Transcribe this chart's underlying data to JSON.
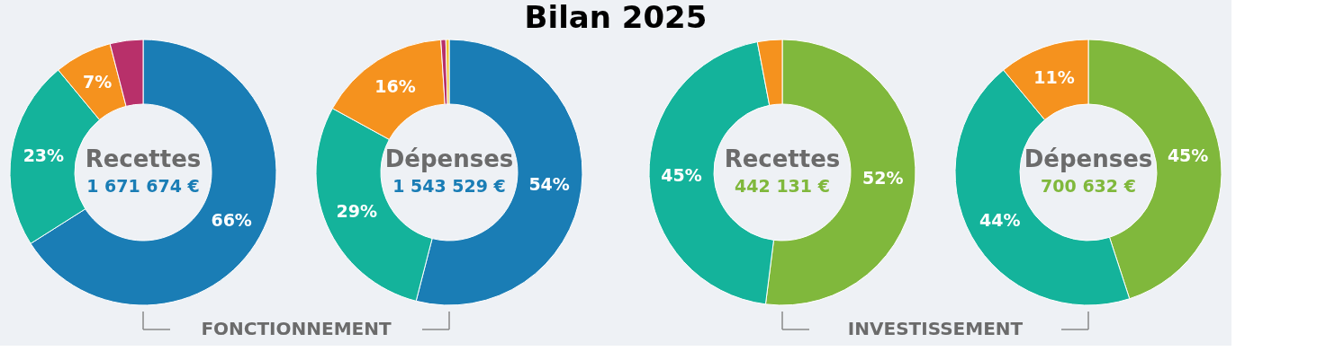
{
  "chart_data": [
    {
      "type": "donut",
      "title": "Bilan 2025",
      "categories": [
        null,
        null,
        null,
        null
      ],
      "values": [
        66,
        23,
        7,
        4
      ],
      "colors": [
        "#1a7db5",
        "#14b39b",
        "#f5921e",
        "#b8306a"
      ],
      "value_labels": [
        "66%",
        "23%",
        "7%",
        null
      ],
      "annotations": [
        "Recettes",
        "1 671 674 €",
        "FONCTIONNEMENT"
      ]
    },
    {
      "type": "donut",
      "categories": [
        null,
        null,
        null,
        null,
        null
      ],
      "values": [
        54,
        29,
        16,
        0.6,
        0.4
      ],
      "colors": [
        "#1a7db5",
        "#14b39b",
        "#f5921e",
        "#b8306a",
        "#f2c230"
      ],
      "value_labels": [
        "54%",
        "29%",
        "16%",
        null,
        null
      ],
      "annotations": [
        "Dépenses",
        "1 543 529 €"
      ]
    },
    {
      "type": "donut",
      "categories": [
        null,
        null,
        null
      ],
      "values": [
        52,
        45,
        3
      ],
      "colors": [
        "#80b83c",
        "#14b39b",
        "#f5921e"
      ],
      "value_labels": [
        "52%",
        "45%",
        null
      ],
      "annotations": [
        "Recettes",
        "442 131 €",
        "INVESTISSEMENT"
      ]
    },
    {
      "type": "donut",
      "categories": [
        null,
        null,
        null
      ],
      "values": [
        45,
        44,
        11
      ],
      "colors": [
        "#80b83c",
        "#14b39b",
        "#f5921e"
      ],
      "value_labels": [
        "45%",
        "44%",
        "11%"
      ],
      "annotations": [
        "Dépenses",
        "700 632 €"
      ]
    }
  ]
}
